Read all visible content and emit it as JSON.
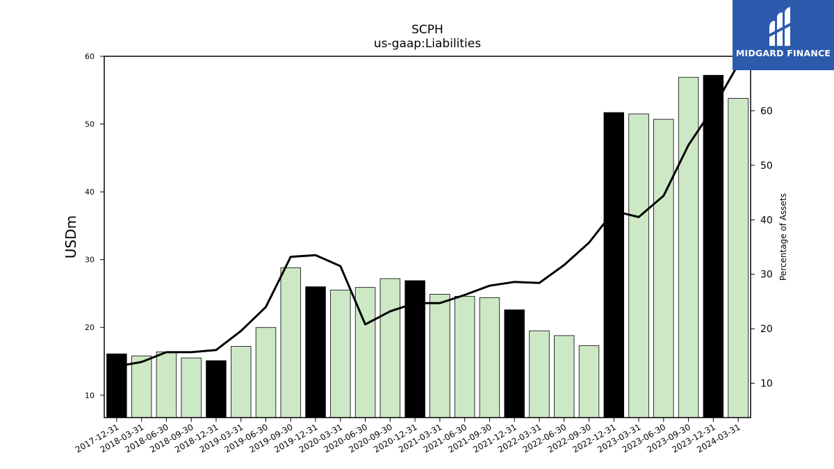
{
  "chart_data": {
    "type": "bar",
    "title": "SCPH",
    "subtitle": "us-gaap:Liabilities",
    "ylabel": "USDm",
    "y2label": "Percentage of Assets",
    "ylim": [
      6.7,
      60
    ],
    "y2lim": [
      3.7,
      70
    ],
    "yticks": [
      10,
      20,
      30,
      40,
      50,
      60
    ],
    "y2ticks": [
      10,
      20,
      30,
      40,
      50,
      60
    ],
    "categories": [
      "2017-12-31",
      "2018-03-31",
      "2018-06-30",
      "2018-09-30",
      "2018-12-31",
      "2019-03-31",
      "2019-06-30",
      "2019-09-30",
      "2019-12-31",
      "2020-03-31",
      "2020-06-30",
      "2020-09-30",
      "2020-12-31",
      "2021-03-31",
      "2021-06-30",
      "2021-09-30",
      "2021-12-31",
      "2022-03-31",
      "2022-06-30",
      "2022-09-30",
      "2022-12-31",
      "2023-03-31",
      "2023-06-30",
      "2023-09-30",
      "2023-12-31",
      "2024-03-31"
    ],
    "series": [
      {
        "type": "bar",
        "values": [
          16.1,
          15.8,
          16.4,
          15.5,
          15.1,
          17.2,
          20.0,
          28.8,
          26.0,
          25.5,
          25.9,
          27.2,
          26.9,
          24.9,
          24.6,
          24.4,
          22.6,
          19.5,
          18.8,
          17.3,
          51.7,
          51.5,
          50.7,
          56.9,
          57.2,
          53.8
        ],
        "year_end": [
          true,
          false,
          false,
          false,
          true,
          false,
          false,
          false,
          true,
          false,
          false,
          false,
          true,
          false,
          false,
          false,
          true,
          false,
          false,
          false,
          true,
          false,
          false,
          false,
          true,
          false
        ]
      },
      {
        "type": "line",
        "axis": "right",
        "values": [
          13.1,
          13.9,
          15.7,
          15.7,
          16.1,
          19.6,
          24.0,
          33.2,
          33.5,
          31.5,
          20.8,
          23.2,
          24.7,
          24.7,
          26.2,
          27.9,
          28.6,
          28.4,
          31.7,
          35.8,
          41.6,
          40.5,
          44.4,
          53.7,
          60.5,
          68.5
        ]
      }
    ],
    "colors": {
      "bar_year_end": "#000000",
      "bar_other": "#cde8c5",
      "bar_edge": "#000000",
      "line": "#000000"
    },
    "grid": false
  },
  "logo": {
    "text": "MIDGARD FINANCE",
    "color": "#2c5aad"
  }
}
